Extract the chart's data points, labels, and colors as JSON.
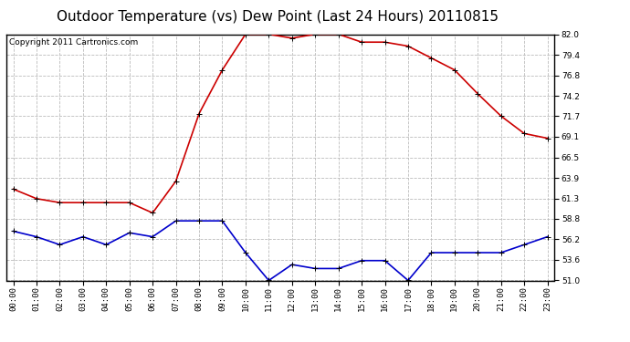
{
  "title": "Outdoor Temperature (vs) Dew Point (Last 24 Hours) 20110815",
  "copyright": "Copyright 2011 Cartronics.com",
  "background_color": "#ffffff",
  "plot_background": "#ffffff",
  "grid_color": "#bbbbbb",
  "hours": [
    0,
    1,
    2,
    3,
    4,
    5,
    6,
    7,
    8,
    9,
    10,
    11,
    12,
    13,
    14,
    15,
    16,
    17,
    18,
    19,
    20,
    21,
    22,
    23
  ],
  "hour_labels": [
    "00:00",
    "01:00",
    "02:00",
    "03:00",
    "04:00",
    "05:00",
    "06:00",
    "07:00",
    "08:00",
    "09:00",
    "10:00",
    "11:00",
    "12:00",
    "13:00",
    "14:00",
    "15:00",
    "16:00",
    "17:00",
    "18:00",
    "19:00",
    "20:00",
    "21:00",
    "22:00",
    "23:00"
  ],
  "temp": [
    62.5,
    61.3,
    60.8,
    60.8,
    60.8,
    60.8,
    59.5,
    63.5,
    72.0,
    77.5,
    82.0,
    82.0,
    81.5,
    82.0,
    82.0,
    81.0,
    81.0,
    80.5,
    79.0,
    77.5,
    74.5,
    71.7,
    69.5,
    68.9
  ],
  "dewpoint": [
    57.2,
    56.5,
    55.5,
    56.5,
    55.5,
    57.0,
    56.5,
    58.5,
    58.5,
    58.5,
    54.5,
    51.0,
    53.0,
    52.5,
    52.5,
    53.5,
    53.5,
    51.0,
    54.5,
    54.5,
    54.5,
    54.5,
    55.5,
    56.5
  ],
  "temp_color": "#cc0000",
  "dewpoint_color": "#0000cc",
  "marker": "+",
  "markersize": 5,
  "linewidth": 1.2,
  "ylim": [
    51.0,
    82.0
  ],
  "yticks": [
    51.0,
    53.6,
    56.2,
    58.8,
    61.3,
    63.9,
    66.5,
    69.1,
    71.7,
    74.2,
    76.8,
    79.4,
    82.0
  ],
  "title_fontsize": 11,
  "copyright_fontsize": 6.5,
  "tick_fontsize": 6.5,
  "fig_width": 6.9,
  "fig_height": 3.75,
  "dpi": 100
}
